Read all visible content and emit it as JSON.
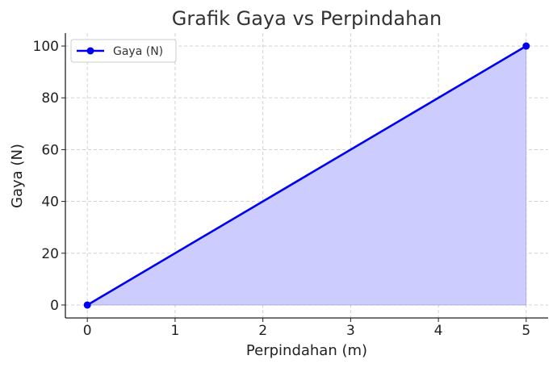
{
  "chart_data": {
    "type": "area",
    "title": "Grafik Gaya vs Perpindahan",
    "xlabel": "Perpindahan (m)",
    "ylabel": "Gaya (N)",
    "x": [
      0,
      5
    ],
    "series": [
      {
        "name": "Gaya (N)",
        "x": [
          0,
          5
        ],
        "values": [
          0,
          100
        ],
        "color": "#0000ee",
        "fill": "#ccccff"
      }
    ],
    "xlim": [
      -0.25,
      5.25
    ],
    "ylim": [
      -5,
      105
    ],
    "xticks": [
      0,
      1,
      2,
      3,
      4,
      5
    ],
    "yticks": [
      0,
      20,
      40,
      60,
      80,
      100
    ],
    "grid": true,
    "legend_position": "top-left"
  }
}
